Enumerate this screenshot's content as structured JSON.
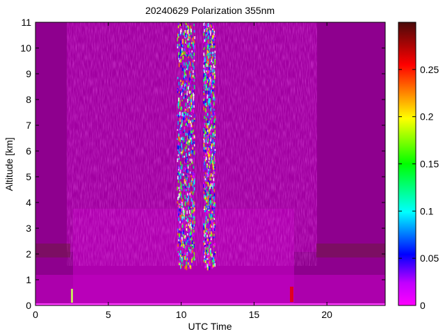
{
  "chart_data": {
    "type": "heatmap",
    "title": "20240629 Polarization 355nm",
    "xlabel": "UTC Time",
    "ylabel": "Altitude [km]",
    "xlim": [
      0,
      24
    ],
    "ylim": [
      0,
      11
    ],
    "x_ticks": [
      0,
      5,
      10,
      15,
      20
    ],
    "y_ticks": [
      0,
      1,
      2,
      3,
      4,
      5,
      6,
      7,
      8,
      9,
      10,
      11
    ],
    "colorbar": {
      "range": [
        0,
        0.3
      ],
      "ticks": [
        0,
        0.05,
        0.1,
        0.15,
        0.2,
        0.25
      ],
      "tick_labels": [
        "0",
        "0.05",
        "0.1",
        "0.15",
        "0.2",
        "0.25"
      ],
      "colormap": "rainbow (magenta-blue-cyan-green-yellow-red-dark red)"
    },
    "features": [
      {
        "name": "boundary layer top",
        "time_range": [
          0,
          24
        ],
        "altitude_km": 2.0
      },
      {
        "name": "noisy high-depolarization band",
        "time_range": [
          9.7,
          10.9
        ],
        "altitude_range": [
          1.5,
          11
        ]
      },
      {
        "name": "noisy high-depolarization band",
        "time_range": [
          11.5,
          12.3
        ],
        "altitude_range": [
          1.5,
          11
        ]
      },
      {
        "name": "vertical artefact",
        "time": 2.6,
        "altitude_range": [
          0.2,
          0.6
        ]
      },
      {
        "name": "vertical artefact",
        "time": 17.6,
        "altitude_range": [
          0.2,
          0.6
        ]
      }
    ]
  }
}
